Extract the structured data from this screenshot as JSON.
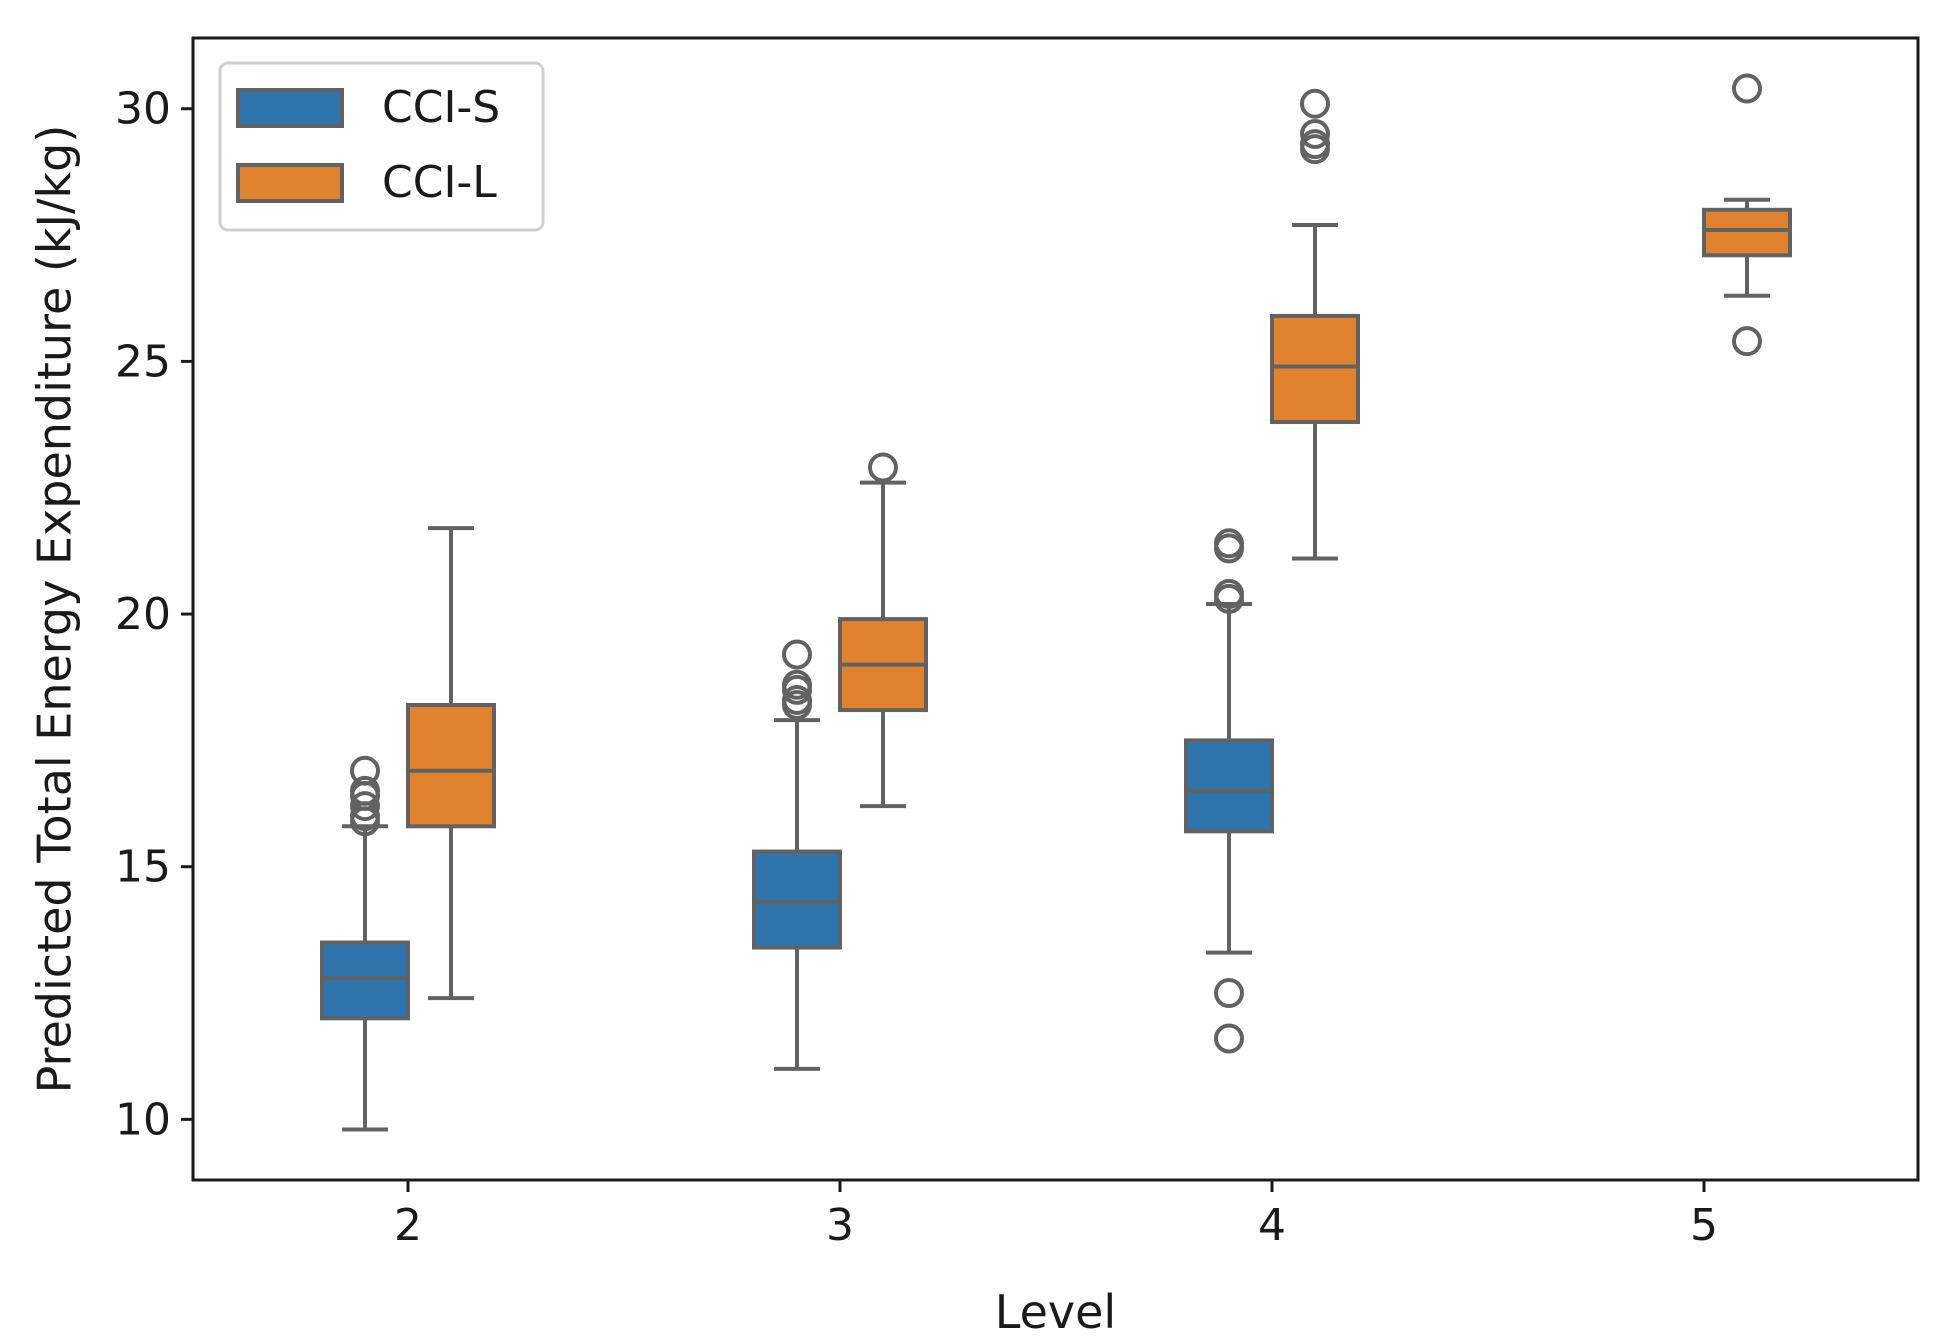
{
  "chart_data": {
    "type": "box",
    "title": "",
    "xlabel": "Level",
    "ylabel": "Predicted Total Energy Expenditure (kJ/kg)",
    "categories": [
      "2",
      "3",
      "4",
      "5"
    ],
    "ylim": [
      8.8,
      31.4
    ],
    "yticks": [
      "10",
      "15",
      "20",
      "25",
      "30"
    ],
    "grid": false,
    "legend_position": "top-left",
    "series": [
      {
        "name": "CCI-S",
        "color": "#2e75ad",
        "boxes": [
          {
            "category": "2",
            "whisker_low": 9.8,
            "q1": 12.0,
            "median": 12.8,
            "q3": 13.5,
            "whisker_high": 15.8,
            "outliers": [
              15.9,
              16.0,
              16.2,
              16.4,
              16.5,
              16.9
            ]
          },
          {
            "category": "3",
            "whisker_low": 11.0,
            "q1": 13.4,
            "median": 14.3,
            "q3": 15.3,
            "whisker_high": 17.9,
            "outliers": [
              18.2,
              18.3,
              18.5,
              18.6,
              19.2
            ]
          },
          {
            "category": "4",
            "whisker_low": 13.3,
            "q1": 15.7,
            "median": 16.5,
            "q3": 17.5,
            "whisker_high": 20.2,
            "outliers": [
              20.3,
              20.4,
              21.3,
              21.4,
              12.5,
              11.6
            ]
          }
        ]
      },
      {
        "name": "CCI-L",
        "color": "#e0822e",
        "boxes": [
          {
            "category": "2",
            "whisker_low": 12.4,
            "q1": 15.8,
            "median": 16.9,
            "q3": 18.2,
            "whisker_high": 21.7,
            "outliers": []
          },
          {
            "category": "3",
            "whisker_low": 16.2,
            "q1": 18.1,
            "median": 19.0,
            "q3": 19.9,
            "whisker_high": 22.6,
            "outliers": [
              22.9
            ]
          },
          {
            "category": "4",
            "whisker_low": 21.1,
            "q1": 23.8,
            "median": 24.9,
            "q3": 25.9,
            "whisker_high": 27.7,
            "outliers": [
              29.2,
              29.3,
              29.5,
              30.1
            ]
          },
          {
            "category": "5",
            "whisker_low": 26.3,
            "q1": 27.1,
            "median": 27.6,
            "q3": 28.0,
            "whisker_high": 28.2,
            "outliers": [
              30.4,
              25.4
            ]
          }
        ]
      }
    ]
  }
}
